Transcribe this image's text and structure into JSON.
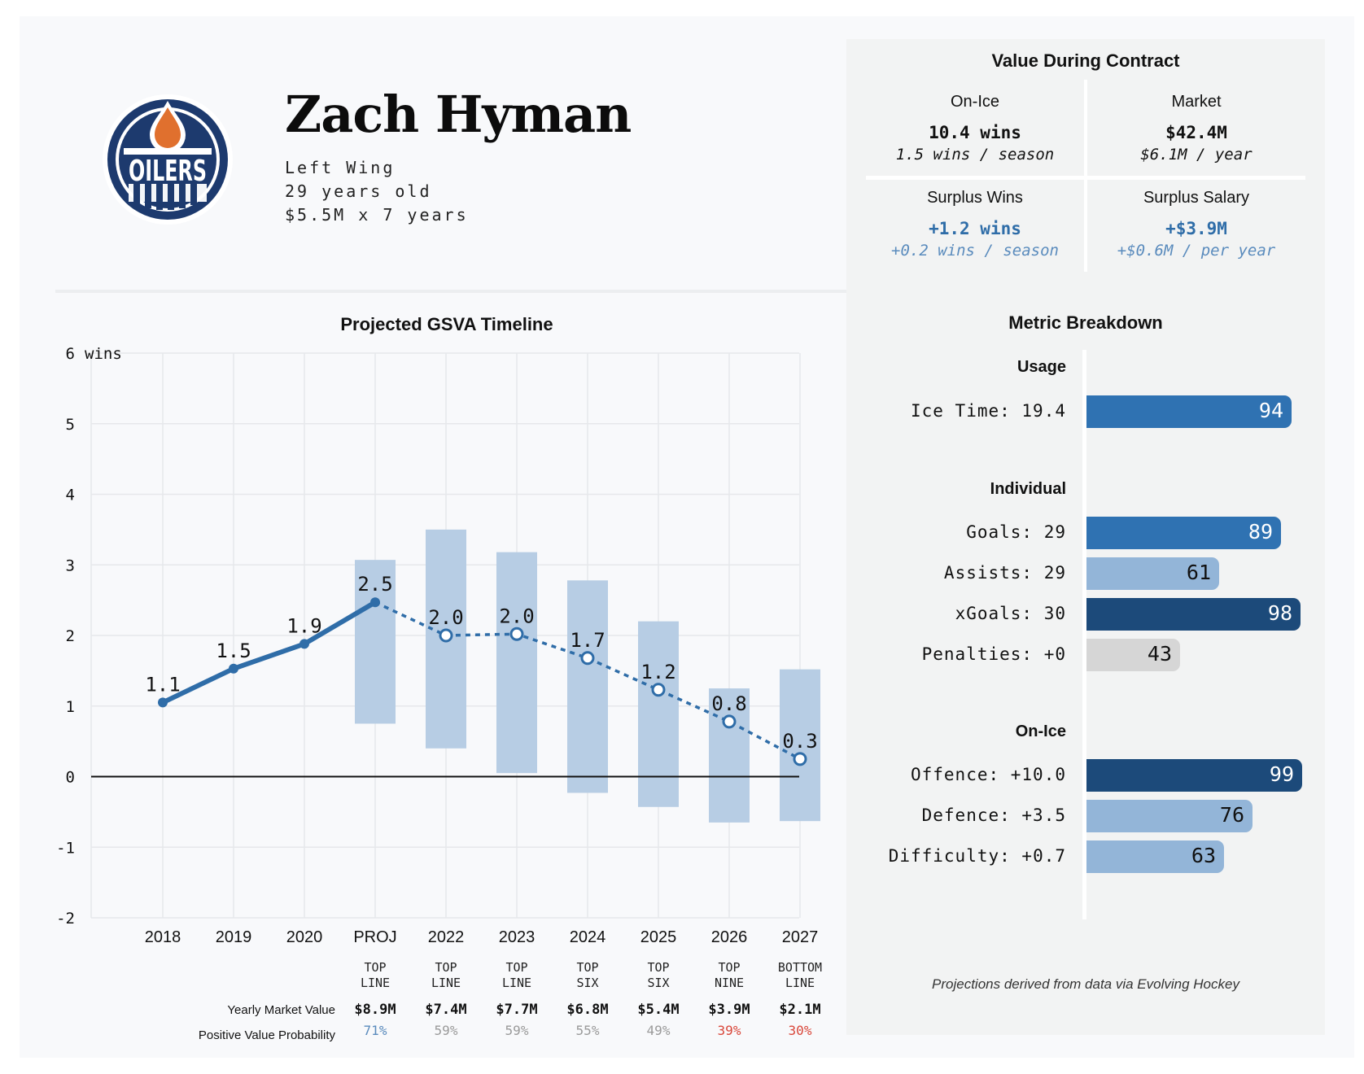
{
  "player": {
    "name": "Zach Hyman",
    "position": "Left Wing",
    "age": "29 years old",
    "contract": "$5.5M x 7 years",
    "team_logo": "OILERS"
  },
  "contract_value": {
    "title": "Value During Contract",
    "cells": [
      {
        "title": "On-Ice",
        "main": "10.4 wins",
        "sub": "1.5 wins / season",
        "highlight": false
      },
      {
        "title": "Market",
        "main": "$42.4M",
        "sub": "$6.1M / year",
        "highlight": false
      },
      {
        "title": "Surplus Wins",
        "main": "+1.2 wins",
        "sub": "+0.2 wins / season",
        "highlight": true
      },
      {
        "title": "Surplus Salary",
        "main": "+$3.9M",
        "sub": "+$0.6M / per year",
        "highlight": true
      }
    ]
  },
  "chart_data": {
    "type": "line",
    "title": "Projected GSVA Timeline",
    "y_unit_label": "wins",
    "ylim": [
      -2,
      6
    ],
    "yticks": [
      -2,
      -1,
      0,
      1,
      2,
      3,
      4,
      5,
      6
    ],
    "grid": true,
    "categories": [
      "2018",
      "2019",
      "2020",
      "PROJ",
      "2022",
      "2023",
      "2024",
      "2025",
      "2026",
      "2027"
    ],
    "series": [
      {
        "values": [
          1.05,
          1.53,
          1.88,
          2.47,
          null,
          null,
          null,
          null,
          null,
          null
        ],
        "labels": [
          "1.1",
          "1.5",
          "1.9",
          "2.5",
          null,
          null,
          null,
          null,
          null,
          null
        ]
      },
      {
        "values": [
          null,
          null,
          null,
          2.47,
          2.0,
          2.02,
          1.68,
          1.23,
          0.78,
          0.25
        ],
        "labels": [
          null,
          null,
          null,
          null,
          "2.0",
          "2.0",
          "1.7",
          "1.2",
          "0.8",
          "0.3"
        ]
      }
    ],
    "ranges": [
      null,
      null,
      null,
      [
        0.75,
        3.07
      ],
      [
        0.4,
        3.5
      ],
      [
        0.05,
        3.18
      ],
      [
        -0.23,
        2.78
      ],
      [
        -0.43,
        2.2
      ],
      [
        -0.65,
        1.25
      ],
      [
        -0.63,
        1.52
      ]
    ],
    "roles": [
      null,
      null,
      null,
      [
        "TOP",
        "LINE"
      ],
      [
        "TOP",
        "LINE"
      ],
      [
        "TOP",
        "LINE"
      ],
      [
        "TOP",
        "SIX"
      ],
      [
        "TOP",
        "SIX"
      ],
      [
        "TOP",
        "NINE"
      ],
      [
        "BOTTOM",
        "LINE"
      ]
    ],
    "market_value_label": "Yearly Market Value",
    "market_values": [
      null,
      null,
      null,
      "$8.9M",
      "$7.4M",
      "$7.7M",
      "$6.8M",
      "$5.4M",
      "$3.9M",
      "$2.1M"
    ],
    "probability_label": "Positive Value Probability",
    "probabilities": [
      null,
      null,
      null,
      "71%",
      "59%",
      "59%",
      "55%",
      "49%",
      "39%",
      "30%"
    ],
    "probability_colors": [
      null,
      null,
      null,
      "#5a8bbd",
      "#9a9a9a",
      "#9a9a9a",
      "#9a9a9a",
      "#9a9a9a",
      "#d9473a",
      "#d9473a"
    ],
    "line_color": "#2f6da8",
    "range_color": "#b7cde4"
  },
  "metrics": {
    "title": "Metric Breakdown",
    "groups": [
      {
        "title": "Usage",
        "items": [
          {
            "label": "Ice Time: 19.4",
            "value": 94,
            "color": "#2f72b2"
          }
        ]
      },
      {
        "title": "Individual",
        "items": [
          {
            "label": "Goals: 29",
            "value": 89,
            "color": "#2f72b2"
          },
          {
            "label": "Assists: 29",
            "value": 61,
            "color": "#93b5d8"
          },
          {
            "label": "xGoals: 30",
            "value": 98,
            "color": "#1c4a7a"
          },
          {
            "label": "Penalties: +0",
            "value": 43,
            "color": "#d6d6d6"
          }
        ]
      },
      {
        "title": "On-Ice",
        "items": [
          {
            "label": "Offence: +10.0",
            "value": 99,
            "color": "#1c4a7a"
          },
          {
            "label": "Defence: +3.5",
            "value": 76,
            "color": "#93b5d8"
          },
          {
            "label": "Difficulty: +0.7",
            "value": 63,
            "color": "#93b5d8"
          }
        ]
      }
    ]
  },
  "footnote": "Projections derived from data via Evolving Hockey"
}
